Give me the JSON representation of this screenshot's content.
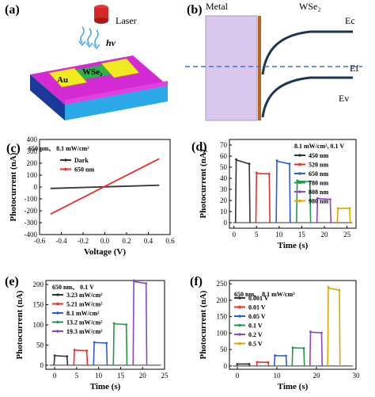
{
  "panels": {
    "a": {
      "label": "(a)",
      "laser_label": "Laser",
      "hv_label": "hv",
      "electrode_label": "Au",
      "channel_label": "WSe₂"
    },
    "b": {
      "label": "(b)",
      "metal_label": "Metal",
      "semiconductor_label": "WSe₂",
      "ec_label": "Ec",
      "ev_label": "Ev",
      "ef_label": "Ef"
    }
  },
  "chart_data": [
    {
      "panel": "(c)",
      "type": "line",
      "annotation": "650 nm、 8.1 mW/cm²",
      "xlabel": "Voltage (V)",
      "ylabel": "Photocurrent (nA)",
      "xlim": [
        -0.6,
        0.6
      ],
      "ylim": [
        -400,
        400
      ],
      "xticks": [
        -0.6,
        -0.4,
        -0.2,
        0.0,
        0.2,
        0.4,
        0.6
      ],
      "xtick_labels": [
        "-0.6",
        "-0.4",
        "-0.2",
        "0.0",
        "0.2",
        "0.4",
        "0.6"
      ],
      "yticks": [
        -400,
        -300,
        -200,
        -100,
        0,
        100,
        200,
        300,
        400
      ],
      "ytick_labels": [
        "-400",
        "-300",
        "-200",
        "-100",
        "0",
        "100",
        "200",
        "300",
        "400"
      ],
      "series": [
        {
          "name": "Dark",
          "color": "#333333",
          "x": [
            -0.5,
            0.5
          ],
          "y": [
            -12,
            15
          ]
        },
        {
          "name": "650 nm",
          "color": "#e8302a",
          "x": [
            -0.5,
            0.5
          ],
          "y": [
            -228,
            238
          ]
        }
      ]
    },
    {
      "panel": "(d)",
      "type": "line",
      "annotation": "8.1 mW/cm², 0.1 V",
      "xlabel": "Time (s)",
      "ylabel": "Photocurrent (nA)",
      "xlim": [
        -1,
        27
      ],
      "ylim": [
        -5,
        75
      ],
      "xticks": [
        0,
        5,
        10,
        15,
        20,
        25
      ],
      "xtick_labels": [
        "0",
        "5",
        "10",
        "15",
        "20",
        "25"
      ],
      "yticks": [
        0,
        10,
        20,
        30,
        40,
        50,
        60,
        70
      ],
      "ytick_labels": [
        "0",
        "10",
        "20",
        "30",
        "40",
        "50",
        "60",
        "70"
      ],
      "series": [
        {
          "name": "450 nm",
          "color": "#333333",
          "on": 0.5,
          "off": 3.4,
          "peak": 57,
          "end": 53
        },
        {
          "name": "520 nm",
          "color": "#e8302a",
          "on": 5.0,
          "off": 7.8,
          "peak": 45,
          "end": 44
        },
        {
          "name": "650 nm",
          "color": "#2e5ad6",
          "on": 9.5,
          "off": 12.3,
          "peak": 56,
          "end": 53
        },
        {
          "name": "780 nm",
          "color": "#1f9a45",
          "on": 14.0,
          "off": 16.8,
          "peak": 38,
          "end": 37
        },
        {
          "name": "808 nm",
          "color": "#8e44c4",
          "on": 18.5,
          "off": 21.3,
          "peak": 22,
          "end": 21
        },
        {
          "name": "980 nm",
          "color": "#e0a500",
          "on": 23.0,
          "off": 25.6,
          "peak": 13,
          "end": 13
        }
      ]
    },
    {
      "panel": "(e)",
      "type": "line",
      "annotation": "650 nm、 0.1 V",
      "xlabel": "Time (s)",
      "ylabel": "Photocurrent (nA)",
      "xlim": [
        -2,
        25
      ],
      "ylim": [
        -10,
        210
      ],
      "xticks": [
        0,
        5,
        10,
        15,
        20,
        25
      ],
      "xtick_labels": [
        "0",
        "5",
        "10",
        "15",
        "20",
        "25"
      ],
      "yticks": [
        0,
        50,
        100,
        150,
        200
      ],
      "ytick_labels": [
        "0",
        "50",
        "100",
        "150",
        "200"
      ],
      "series": [
        {
          "name": "3.23 mW/cm²",
          "color": "#333333",
          "on": 0.0,
          "off": 2.8,
          "peak": 24,
          "end": 22
        },
        {
          "name": "5.21 mW/cm²",
          "color": "#e8302a",
          "on": 4.5,
          "off": 7.3,
          "peak": 38,
          "end": 36
        },
        {
          "name": "8.1 mW/cm²",
          "color": "#2e5ad6",
          "on": 9.0,
          "off": 11.8,
          "peak": 57,
          "end": 55
        },
        {
          "name": "13.2 mW/cm²",
          "color": "#1f9a45",
          "on": 13.5,
          "off": 16.3,
          "peak": 104,
          "end": 101
        },
        {
          "name": "19.3 mW/cm²",
          "color": "#8e44c4",
          "on": 18.0,
          "off": 20.8,
          "peak": 210,
          "end": 203
        }
      ]
    },
    {
      "panel": "(f)",
      "type": "line",
      "annotation": "650 nm、 8.1 mW/cm²",
      "xlabel": "Time (s)",
      "ylabel": "Photocurrent (nA)",
      "xlim": [
        -2,
        30
      ],
      "ylim": [
        -10,
        260
      ],
      "xticks": [
        0,
        10,
        20,
        30
      ],
      "xtick_labels": [
        "0",
        "10",
        "20",
        "30"
      ],
      "yticks": [
        0,
        50,
        100,
        150,
        200,
        250
      ],
      "ytick_labels": [
        "0",
        "50",
        "100",
        "150",
        "200",
        "250"
      ],
      "series": [
        {
          "name": "0.001 V",
          "color": "#333333",
          "on": 0.0,
          "off": 3.0,
          "peak": 6,
          "end": 6
        },
        {
          "name": "0.01 V",
          "color": "#e8302a",
          "on": 5.0,
          "off": 7.8,
          "peak": 12,
          "end": 11
        },
        {
          "name": "0.05 V",
          "color": "#2e5ad6",
          "on": 9.5,
          "off": 12.3,
          "peak": 32,
          "end": 31
        },
        {
          "name": "0.1 V",
          "color": "#1f9a45",
          "on": 14.0,
          "off": 16.8,
          "peak": 56,
          "end": 54
        },
        {
          "name": "0.2 V",
          "color": "#8e44c4",
          "on": 18.5,
          "off": 21.3,
          "peak": 104,
          "end": 101
        },
        {
          "name": "0.5 V",
          "color": "#e0a500",
          "on": 23.0,
          "off": 25.8,
          "peak": 240,
          "end": 231
        }
      ]
    }
  ]
}
